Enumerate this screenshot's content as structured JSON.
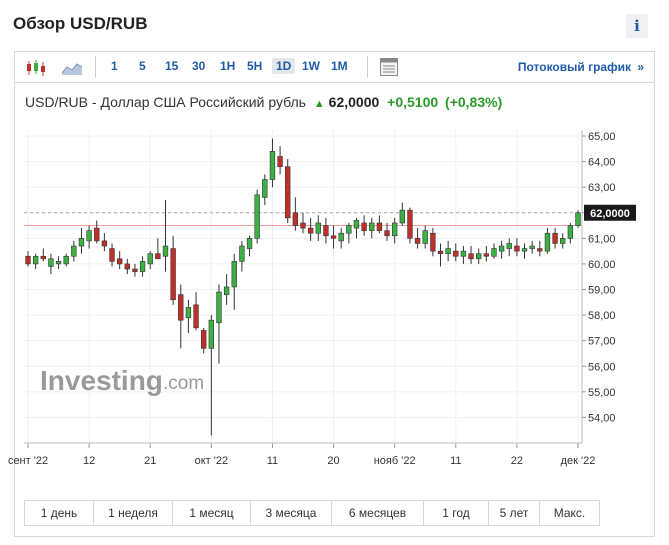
{
  "page": {
    "title": "Обзор USD/RUB",
    "info": "i"
  },
  "toolbar": {
    "timeframes": [
      "1",
      "5",
      "15",
      "30",
      "1H",
      "5H",
      "1D",
      "1W",
      "1M"
    ],
    "active": "1D",
    "stream_label": "Потоковый график",
    "stream_arrow": "»"
  },
  "quote": {
    "name": "USD/RUB - Доллар США Российский рубль",
    "price": "62,0000",
    "change": "+0,5100",
    "change_pct": "(+0,83%)",
    "direction": "up"
  },
  "watermark": {
    "brand": "Investing",
    "suffix": ".com"
  },
  "periods": [
    "1 день",
    "1 неделя",
    "1 месяц",
    "3 месяца",
    "6 месяцев",
    "1 год",
    "5 лет",
    "Макс."
  ],
  "colors": {
    "up": "#3cb043",
    "down": "#c0302b",
    "accent": "#1f5ca8",
    "last_price_bg": "#1a1a1a",
    "ref_line": "#f0a0a0"
  },
  "chart_data": {
    "type": "candlestick",
    "ylim": [
      53,
      65
    ],
    "yticks": [
      "54,00",
      "55,00",
      "56,00",
      "57,00",
      "58,00",
      "59,00",
      "60,00",
      "61,00",
      "62,00",
      "63,00",
      "64,00",
      "65,00"
    ],
    "last_price": 62.0,
    "last_price_label": "62,0000",
    "reference_line": 61.5,
    "xtick_labels": [
      {
        "i": 0,
        "label": "сент '22"
      },
      {
        "i": 8,
        "label": "12"
      },
      {
        "i": 16,
        "label": "21"
      },
      {
        "i": 24,
        "label": "окт '22"
      },
      {
        "i": 32,
        "label": "11"
      },
      {
        "i": 40,
        "label": "20"
      },
      {
        "i": 48,
        "label": "нояб '22"
      },
      {
        "i": 56,
        "label": "11"
      },
      {
        "i": 64,
        "label": "22"
      },
      {
        "i": 72,
        "label": "дек '22"
      }
    ],
    "candles": [
      {
        "o": 60.3,
        "h": 60.5,
        "l": 59.9,
        "c": 60.0
      },
      {
        "o": 60.0,
        "h": 60.4,
        "l": 59.8,
        "c": 60.3
      },
      {
        "o": 60.3,
        "h": 60.6,
        "l": 60.1,
        "c": 60.2
      },
      {
        "o": 59.9,
        "h": 60.4,
        "l": 59.6,
        "c": 60.2
      },
      {
        "o": 60.0,
        "h": 60.3,
        "l": 59.8,
        "c": 60.1
      },
      {
        "o": 60.0,
        "h": 60.4,
        "l": 59.9,
        "c": 60.3
      },
      {
        "o": 60.3,
        "h": 60.9,
        "l": 60.1,
        "c": 60.7
      },
      {
        "o": 60.7,
        "h": 61.4,
        "l": 60.4,
        "c": 61.0
      },
      {
        "o": 60.9,
        "h": 61.5,
        "l": 60.6,
        "c": 61.3
      },
      {
        "o": 61.4,
        "h": 61.7,
        "l": 60.8,
        "c": 60.9
      },
      {
        "o": 60.9,
        "h": 61.2,
        "l": 60.5,
        "c": 60.7
      },
      {
        "o": 60.6,
        "h": 60.8,
        "l": 59.9,
        "c": 60.1
      },
      {
        "o": 60.2,
        "h": 60.5,
        "l": 59.8,
        "c": 60.0
      },
      {
        "o": 60.0,
        "h": 60.2,
        "l": 59.6,
        "c": 59.8
      },
      {
        "o": 59.8,
        "h": 60.0,
        "l": 59.5,
        "c": 59.7
      },
      {
        "o": 59.7,
        "h": 60.3,
        "l": 59.5,
        "c": 60.1
      },
      {
        "o": 60.0,
        "h": 60.5,
        "l": 59.8,
        "c": 60.4
      },
      {
        "o": 60.4,
        "h": 61.0,
        "l": 60.2,
        "c": 60.2
      },
      {
        "o": 60.3,
        "h": 62.5,
        "l": 59.7,
        "c": 60.7
      },
      {
        "o": 60.6,
        "h": 61.1,
        "l": 58.4,
        "c": 58.6
      },
      {
        "o": 58.8,
        "h": 59.2,
        "l": 56.7,
        "c": 57.8
      },
      {
        "o": 57.9,
        "h": 58.6,
        "l": 57.3,
        "c": 58.3
      },
      {
        "o": 58.4,
        "h": 58.9,
        "l": 57.4,
        "c": 57.5
      },
      {
        "o": 57.4,
        "h": 57.5,
        "l": 56.5,
        "c": 56.7
      },
      {
        "o": 56.7,
        "h": 58.0,
        "l": 53.3,
        "c": 57.8
      },
      {
        "o": 57.7,
        "h": 59.2,
        "l": 56.1,
        "c": 58.9
      },
      {
        "o": 58.8,
        "h": 59.6,
        "l": 58.4,
        "c": 59.1
      },
      {
        "o": 59.1,
        "h": 60.4,
        "l": 58.2,
        "c": 60.1
      },
      {
        "o": 60.1,
        "h": 60.9,
        "l": 59.7,
        "c": 60.7
      },
      {
        "o": 60.6,
        "h": 61.1,
        "l": 60.3,
        "c": 61.0
      },
      {
        "o": 61.0,
        "h": 62.9,
        "l": 60.8,
        "c": 62.7
      },
      {
        "o": 62.6,
        "h": 63.5,
        "l": 62.3,
        "c": 63.3
      },
      {
        "o": 63.3,
        "h": 64.9,
        "l": 63.0,
        "c": 64.4
      },
      {
        "o": 64.2,
        "h": 64.6,
        "l": 63.5,
        "c": 63.8
      },
      {
        "o": 63.8,
        "h": 64.1,
        "l": 61.6,
        "c": 61.8
      },
      {
        "o": 62.0,
        "h": 62.6,
        "l": 61.3,
        "c": 61.5
      },
      {
        "o": 61.6,
        "h": 62.0,
        "l": 61.2,
        "c": 61.4
      },
      {
        "o": 61.4,
        "h": 61.8,
        "l": 60.9,
        "c": 61.2
      },
      {
        "o": 61.2,
        "h": 61.9,
        "l": 60.9,
        "c": 61.6
      },
      {
        "o": 61.5,
        "h": 61.8,
        "l": 60.8,
        "c": 61.1
      },
      {
        "o": 61.1,
        "h": 61.5,
        "l": 60.6,
        "c": 61.0
      },
      {
        "o": 60.9,
        "h": 61.4,
        "l": 60.6,
        "c": 61.2
      },
      {
        "o": 61.2,
        "h": 61.6,
        "l": 60.8,
        "c": 61.5
      },
      {
        "o": 61.4,
        "h": 61.8,
        "l": 61.0,
        "c": 61.7
      },
      {
        "o": 61.6,
        "h": 61.9,
        "l": 61.1,
        "c": 61.3
      },
      {
        "o": 61.3,
        "h": 61.8,
        "l": 61.0,
        "c": 61.6
      },
      {
        "o": 61.6,
        "h": 61.9,
        "l": 61.2,
        "c": 61.3
      },
      {
        "o": 61.3,
        "h": 61.6,
        "l": 60.9,
        "c": 61.1
      },
      {
        "o": 61.1,
        "h": 61.8,
        "l": 60.8,
        "c": 61.6
      },
      {
        "o": 61.6,
        "h": 62.4,
        "l": 61.5,
        "c": 62.1
      },
      {
        "o": 62.1,
        "h": 62.2,
        "l": 60.8,
        "c": 61.0
      },
      {
        "o": 61.0,
        "h": 61.4,
        "l": 60.6,
        "c": 60.8
      },
      {
        "o": 60.8,
        "h": 61.5,
        "l": 60.6,
        "c": 61.3
      },
      {
        "o": 61.2,
        "h": 61.4,
        "l": 60.3,
        "c": 60.5
      },
      {
        "o": 60.5,
        "h": 60.8,
        "l": 59.9,
        "c": 60.4
      },
      {
        "o": 60.4,
        "h": 60.9,
        "l": 60.1,
        "c": 60.6
      },
      {
        "o": 60.5,
        "h": 60.8,
        "l": 60.1,
        "c": 60.3
      },
      {
        "o": 60.3,
        "h": 60.7,
        "l": 60.0,
        "c": 60.5
      },
      {
        "o": 60.4,
        "h": 60.7,
        "l": 60.0,
        "c": 60.2
      },
      {
        "o": 60.2,
        "h": 60.6,
        "l": 60.0,
        "c": 60.4
      },
      {
        "o": 60.4,
        "h": 60.7,
        "l": 60.1,
        "c": 60.3
      },
      {
        "o": 60.3,
        "h": 60.8,
        "l": 60.2,
        "c": 60.6
      },
      {
        "o": 60.5,
        "h": 60.9,
        "l": 60.2,
        "c": 60.7
      },
      {
        "o": 60.6,
        "h": 61.0,
        "l": 60.3,
        "c": 60.8
      },
      {
        "o": 60.7,
        "h": 61.0,
        "l": 60.3,
        "c": 60.5
      },
      {
        "o": 60.5,
        "h": 60.8,
        "l": 60.2,
        "c": 60.6
      },
      {
        "o": 60.6,
        "h": 60.9,
        "l": 60.4,
        "c": 60.7
      },
      {
        "o": 60.6,
        "h": 60.9,
        "l": 60.3,
        "c": 60.5
      },
      {
        "o": 60.5,
        "h": 61.4,
        "l": 60.4,
        "c": 61.2
      },
      {
        "o": 61.2,
        "h": 61.4,
        "l": 60.6,
        "c": 60.8
      },
      {
        "o": 60.8,
        "h": 61.2,
        "l": 60.6,
        "c": 61.0
      },
      {
        "o": 61.0,
        "h": 61.6,
        "l": 60.8,
        "c": 61.5
      },
      {
        "o": 61.5,
        "h": 62.1,
        "l": 61.4,
        "c": 62.0
      }
    ]
  }
}
